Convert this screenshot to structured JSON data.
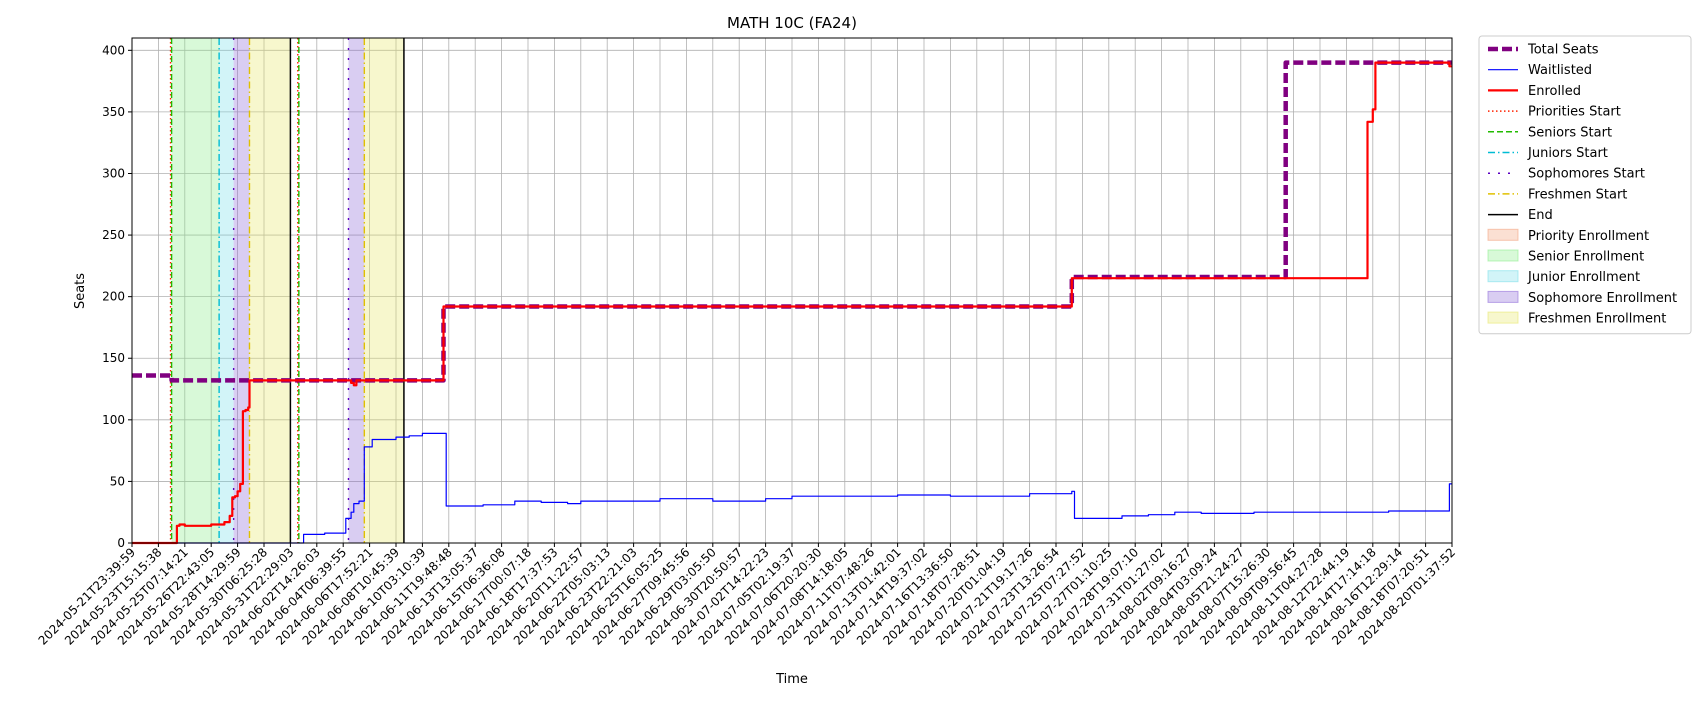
{
  "chart_data": {
    "type": "line",
    "title": "MATH 10C (FA24)",
    "xlabel": "Time",
    "ylabel": "Seats",
    "ylim": [
      0,
      410
    ],
    "y_ticks": [
      0,
      50,
      100,
      150,
      200,
      250,
      300,
      350,
      400
    ],
    "x_tick_labels": [
      "2024-05-21T23:39:59",
      "2024-05-23T15:15:38",
      "2024-05-25T07:14:21",
      "2024-05-26T22:43:05",
      "2024-05-28T14:29:59",
      "2024-05-30T06:25:28",
      "2024-05-31T22:29:03",
      "2024-06-02T14:26:03",
      "2024-06-04T06:39:55",
      "2024-06-06T17:52:21",
      "2024-06-08T10:45:39",
      "2024-06-10T03:10:39",
      "2024-06-11T19:48:48",
      "2024-06-13T13:05:37",
      "2024-06-15T06:36:08",
      "2024-06-17T00:07:18",
      "2024-06-18T17:37:53",
      "2024-06-20T11:22:57",
      "2024-06-22T05:03:13",
      "2024-06-23T22:21:03",
      "2024-06-25T16:05:25",
      "2024-06-27T09:45:56",
      "2024-06-29T03:05:50",
      "2024-06-30T20:50:57",
      "2024-07-02T14:22:23",
      "2024-07-05T02:19:37",
      "2024-07-06T20:20:30",
      "2024-07-08T14:18:05",
      "2024-07-11T07:48:26",
      "2024-07-13T01:42:01",
      "2024-07-14T19:37:02",
      "2024-07-16T13:36:50",
      "2024-07-18T07:28:51",
      "2024-07-20T01:04:19",
      "2024-07-21T19:17:26",
      "2024-07-23T13:26:54",
      "2024-07-25T07:27:52",
      "2024-07-27T01:10:25",
      "2024-07-28T19:07:10",
      "2024-07-31T01:27:02",
      "2024-08-02T09:16:27",
      "2024-08-04T03:09:24",
      "2024-08-05T21:24:27",
      "2024-08-07T15:26:30",
      "2024-08-09T09:56:45",
      "2024-08-11T04:27:28",
      "2024-08-12T22:44:19",
      "2024-08-14T17:14:18",
      "2024-08-16T12:29:14",
      "2024-08-18T07:20:51",
      "2024-08-20T01:37:52"
    ],
    "x_range_ticks": [
      0,
      50
    ],
    "series": [
      {
        "name": "Total Seats",
        "style": "dashed",
        "color": "#800080",
        "x": [
          0,
          1.5,
          1.5,
          11.8,
          11.8,
          35.6,
          35.6,
          43.7,
          43.7,
          50
        ],
        "y": [
          136,
          136,
          132,
          132,
          192,
          192,
          216,
          216,
          390,
          390
        ]
      },
      {
        "name": "Waitlisted",
        "style": "solid",
        "color": "#0000ff",
        "x": [
          0,
          6.3,
          6.5,
          6.7,
          7.3,
          7.5,
          8.1,
          8.1,
          8.3,
          8.4,
          8.6,
          8.7,
          8.8,
          9.1,
          9.5,
          9.9,
          10.0,
          10.5,
          11.0,
          11.8,
          11.9,
          12.5,
          13.3,
          14.5,
          15.5,
          16.5,
          17.0,
          18.0,
          19.0,
          20.0,
          21.0,
          22.0,
          23.0,
          24.0,
          25.0,
          27.0,
          28.0,
          29.0,
          30.0,
          31.0,
          33.0,
          34.0,
          35.0,
          35.6,
          35.7,
          36.5,
          37.5,
          38.5,
          39.5,
          40.5,
          41.5,
          42.5,
          43.5,
          44.5,
          47.5,
          47.6,
          49.8,
          49.9,
          50
        ],
        "y": [
          0,
          0,
          7,
          7,
          8,
          8,
          8,
          20,
          25,
          32,
          34,
          34,
          78,
          84,
          84,
          84,
          86,
          87,
          89,
          89,
          30,
          30,
          31,
          34,
          33,
          32,
          34,
          34,
          34,
          36,
          36,
          34,
          34,
          36,
          38,
          38,
          38,
          39,
          39,
          38,
          38,
          40,
          40,
          42,
          20,
          20,
          22,
          23,
          25,
          24,
          24,
          25,
          25,
          25,
          25,
          26,
          26,
          48,
          48
        ]
      },
      {
        "name": "Enrolled",
        "style": "solid",
        "color": "#ff0000",
        "x": [
          0,
          1.5,
          1.7,
          1.8,
          2.0,
          2.4,
          3.0,
          3.5,
          3.6,
          3.7,
          3.8,
          3.9,
          4.0,
          4.1,
          4.2,
          4.3,
          4.4,
          4.45,
          8.3,
          8.4,
          8.5,
          9.0,
          11.0,
          11.8,
          11.8,
          35.5,
          35.6,
          35.6,
          46.6,
          46.8,
          47.0,
          47.1,
          47.3,
          49.8,
          49.9,
          50
        ],
        "y": [
          0,
          0,
          14,
          15,
          14,
          14,
          15,
          17,
          17,
          22,
          37,
          38,
          42,
          48,
          107,
          108,
          110,
          132,
          130,
          128,
          132,
          132,
          132,
          132,
          192,
          192,
          192,
          215,
          215,
          342,
          352,
          390,
          390,
          390,
          387,
          387
        ]
      }
    ],
    "vlines": [
      {
        "name": "Priorities Start",
        "x": 1.46,
        "style": "dotted",
        "color": "#ff2200"
      },
      {
        "name": "Seniors Start",
        "x": 1.5,
        "style": "dashed",
        "color": "#22bb00"
      },
      {
        "name": "Juniors Start",
        "x": 3.3,
        "style": "dashdot",
        "color": "#00bcd4"
      },
      {
        "name": "Sophomores Start",
        "x": 3.85,
        "style": "loosedash",
        "color": "#5a00c0"
      },
      {
        "name": "Freshmen Start",
        "x": 4.45,
        "style": "dashdot",
        "color": "#e0c000"
      },
      {
        "name": "End",
        "x": 6.0,
        "style": "solid",
        "color": "#000000"
      },
      {
        "name": "Priorities Start",
        "x": 6.28,
        "style": "dotted",
        "color": "#ff2200"
      },
      {
        "name": "Seniors Start",
        "x": 6.32,
        "style": "dashed",
        "color": "#22bb00"
      },
      {
        "name": "Sophomores Start",
        "x": 8.2,
        "style": "loosedash",
        "color": "#5a00c0"
      },
      {
        "name": "Freshmen Start",
        "x": 8.8,
        "style": "dashdot",
        "color": "#e0c000"
      },
      {
        "name": "End",
        "x": 10.3,
        "style": "solid",
        "color": "#000000"
      }
    ],
    "spans": [
      {
        "name": "Senior Enrollment",
        "x0": 1.5,
        "x1": 3.3,
        "color": "#90ee90",
        "alpha": 0.35
      },
      {
        "name": "Junior Enrollment",
        "x0": 3.3,
        "x1": 3.85,
        "color": "#7fe0ea",
        "alpha": 0.35
      },
      {
        "name": "Sophomore Enrollment",
        "x0": 3.85,
        "x1": 4.45,
        "color": "#9370db",
        "alpha": 0.35
      },
      {
        "name": "Freshmen Enrollment",
        "x0": 4.45,
        "x1": 6.0,
        "color": "#e8e870",
        "alpha": 0.35
      },
      {
        "name": "Sophomore Enrollment",
        "x0": 8.2,
        "x1": 8.8,
        "color": "#9370db",
        "alpha": 0.35
      },
      {
        "name": "Freshmen Enrollment",
        "x0": 8.8,
        "x1": 10.3,
        "color": "#e8e870",
        "alpha": 0.35
      }
    ],
    "legend": {
      "placement": "outside-right-top",
      "entries": [
        {
          "label": "Total Seats",
          "kind": "line",
          "color": "#800080",
          "style": "dashed-thick"
        },
        {
          "label": "Waitlisted",
          "kind": "line",
          "color": "#0000ff",
          "style": "solid-thin"
        },
        {
          "label": "Enrolled",
          "kind": "line",
          "color": "#ff0000",
          "style": "solid"
        },
        {
          "label": "Priorities Start",
          "kind": "line",
          "color": "#ff2200",
          "style": "dotted"
        },
        {
          "label": "Seniors Start",
          "kind": "line",
          "color": "#22bb00",
          "style": "dashed"
        },
        {
          "label": "Juniors Start",
          "kind": "line",
          "color": "#00bcd4",
          "style": "dashdot"
        },
        {
          "label": "Sophomores Start",
          "kind": "line",
          "color": "#5a00c0",
          "style": "loosedash"
        },
        {
          "label": "Freshmen Start",
          "kind": "line",
          "color": "#e0c000",
          "style": "dashdot"
        },
        {
          "label": "End",
          "kind": "line",
          "color": "#000000",
          "style": "solid"
        },
        {
          "label": "Priority Enrollment",
          "kind": "patch",
          "color": "#f4a582"
        },
        {
          "label": "Senior Enrollment",
          "kind": "patch",
          "color": "#90ee90"
        },
        {
          "label": "Junior Enrollment",
          "kind": "patch",
          "color": "#7fe0ea"
        },
        {
          "label": "Sophomore Enrollment",
          "kind": "patch",
          "color": "#9370db"
        },
        {
          "label": "Freshmen Enrollment",
          "kind": "patch",
          "color": "#e8e870"
        }
      ]
    },
    "grid": true
  }
}
